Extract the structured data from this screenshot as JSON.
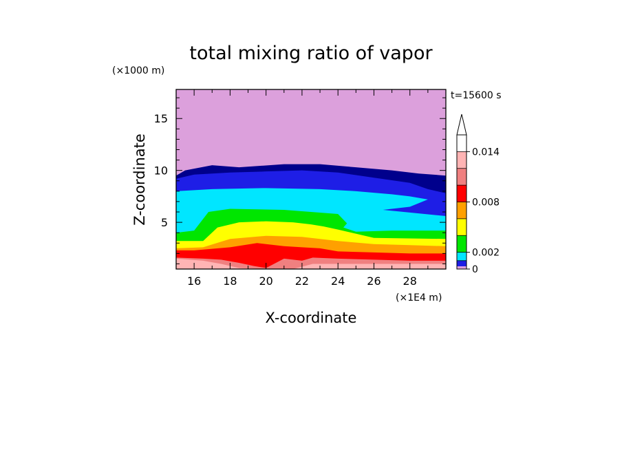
{
  "chart_data": {
    "type": "heatmap",
    "title": "total mixing ratio of vapor",
    "xlabel": "X-coordinate",
    "ylabel": "Z-coordinate",
    "x_unit": "(×1E4 m)",
    "y_unit": "(×1000 m)",
    "time_label": "t=15600 s",
    "xlim": [
      15,
      30
    ],
    "ylim": [
      0.5,
      17.8
    ],
    "x_ticks": [
      "16",
      "18",
      "20",
      "22",
      "24",
      "26",
      "28"
    ],
    "y_ticks": [
      "5",
      "10",
      "15"
    ],
    "colorbar": {
      "tick_labels": [
        "0",
        "0.002",
        "0.008",
        "0.014"
      ],
      "levels": [
        0,
        0.001,
        0.002,
        0.004,
        0.006,
        0.008,
        0.01,
        0.012,
        0.014,
        0.016
      ],
      "colors": [
        "#dca0dc",
        "#1e1ee6",
        "#00e6ff",
        "#00e600",
        "#ffff00",
        "#ffa000",
        "#ff0000",
        "#f08080",
        "#ffb4b4",
        "#ffffff"
      ],
      "extend": "max"
    },
    "contour_bands": [
      {
        "level": 0.0,
        "color": "#dca0dc",
        "top": [
          [
            15,
            17.8
          ],
          [
            30,
            17.8
          ]
        ]
      },
      {
        "level": 0.0005,
        "color": "#00008c",
        "top": [
          [
            15,
            9.5
          ],
          [
            15.5,
            10
          ],
          [
            17,
            10.5
          ],
          [
            18.5,
            10.3
          ],
          [
            21,
            10.6
          ],
          [
            23,
            10.6
          ],
          [
            25,
            10.3
          ],
          [
            27,
            10
          ],
          [
            28.5,
            9.7
          ],
          [
            30,
            9.5
          ]
        ]
      },
      {
        "level": 0.001,
        "color": "#1e1ee6",
        "top": [
          [
            15,
            9.2
          ],
          [
            16,
            9.6
          ],
          [
            18,
            9.8
          ],
          [
            20,
            9.9
          ],
          [
            22,
            10
          ],
          [
            24,
            9.8
          ],
          [
            26,
            9.3
          ],
          [
            28,
            8.8
          ],
          [
            29,
            8.2
          ],
          [
            30,
            7.8
          ]
        ]
      },
      {
        "level": 0.002,
        "color": "#00e6ff",
        "top": [
          [
            15,
            8
          ],
          [
            17,
            8.2
          ],
          [
            20,
            8.3
          ],
          [
            23,
            8.2
          ],
          [
            25,
            8
          ],
          [
            27,
            7.7
          ],
          [
            28,
            7.5
          ],
          [
            29,
            7.2
          ],
          [
            28,
            6.5
          ],
          [
            26.5,
            6.2
          ],
          [
            30,
            5.6
          ]
        ]
      },
      {
        "level": 0.004,
        "color": "#00e600",
        "top": [
          [
            15,
            4
          ],
          [
            16,
            4.2
          ],
          [
            16.8,
            6
          ],
          [
            18,
            6.3
          ],
          [
            21,
            6.2
          ],
          [
            24,
            5.8
          ],
          [
            24.5,
            4.9
          ],
          [
            24.3,
            4.5
          ],
          [
            25,
            4.1
          ],
          [
            27,
            4.2
          ],
          [
            30,
            4.2
          ]
        ]
      },
      {
        "level": 0.006,
        "color": "#ffff00",
        "top": [
          [
            15,
            3.2
          ],
          [
            16.5,
            3.2
          ],
          [
            17.3,
            4.5
          ],
          [
            18.5,
            5
          ],
          [
            20,
            5.1
          ],
          [
            21.5,
            5
          ],
          [
            22.5,
            4.8
          ],
          [
            23.2,
            4.6
          ],
          [
            24,
            4.3
          ],
          [
            26,
            3.5
          ],
          [
            30,
            3.4
          ]
        ]
      },
      {
        "level": 0.008,
        "color": "#ffa000",
        "top": [
          [
            15,
            2.5
          ],
          [
            16.5,
            2.6
          ],
          [
            18,
            3.4
          ],
          [
            20,
            3.7
          ],
          [
            22,
            3.6
          ],
          [
            24,
            3.2
          ],
          [
            26,
            2.9
          ],
          [
            28,
            2.8
          ],
          [
            30,
            2.7
          ]
        ]
      },
      {
        "level": 0.01,
        "color": "#ff0000",
        "top": [
          [
            15,
            2.3
          ],
          [
            16,
            2.3
          ],
          [
            18,
            2.6
          ],
          [
            19.5,
            3
          ],
          [
            21,
            2.7
          ],
          [
            22,
            2.6
          ],
          [
            23,
            2.5
          ],
          [
            24,
            2.2
          ],
          [
            26,
            2.1
          ],
          [
            28,
            2
          ],
          [
            30,
            2
          ]
        ]
      },
      {
        "level": 0.012,
        "color": "#f08080",
        "top": [
          [
            15,
            1.6
          ],
          [
            16.5,
            1.5
          ],
          [
            17.5,
            1.4
          ],
          [
            18.5,
            1.1
          ],
          [
            19.3,
            0.8
          ],
          [
            20,
            0.6
          ],
          [
            21,
            1.5
          ],
          [
            22,
            1.3
          ],
          [
            22.6,
            1.6
          ],
          [
            24,
            1.5
          ],
          [
            26,
            1.4
          ],
          [
            28,
            1.3
          ],
          [
            30,
            1.3
          ]
        ]
      },
      {
        "level": 0.014,
        "color": "#ffb4b4",
        "top": [
          [
            15,
            1.5
          ],
          [
            16.5,
            1.3
          ],
          [
            17.5,
            1.0
          ],
          [
            18.5,
            0.6
          ],
          [
            20,
            0.5
          ],
          [
            21.5,
            0.5
          ],
          [
            22.6,
            1.0
          ],
          [
            24,
            1.0
          ],
          [
            26,
            1.0
          ],
          [
            28,
            1.0
          ],
          [
            30,
            1.0
          ]
        ]
      }
    ]
  }
}
